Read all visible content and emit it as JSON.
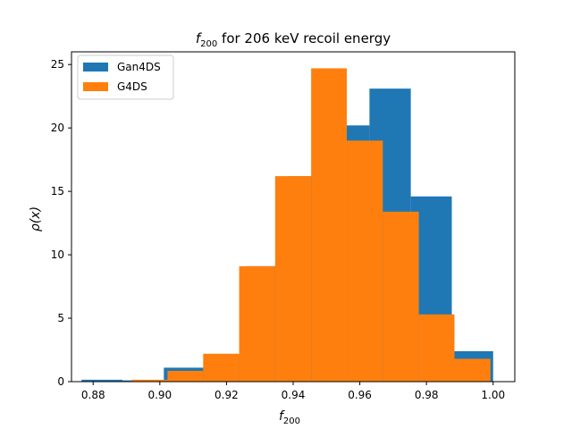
{
  "chart_data": {
    "type": "histogram",
    "title_main": "f",
    "title_sub": "200",
    "title_rest": " for 206 keV recoil energy",
    "xlabel_main": "f",
    "xlabel_sub": "200",
    "ylabel": "ρ(x)",
    "xlim": [
      0.8735,
      1.0065
    ],
    "ylim": [
      0,
      26
    ],
    "xticks": [
      "0.88",
      "0.90",
      "0.92",
      "0.94",
      "0.96",
      "0.98",
      "1.00"
    ],
    "xtick_values": [
      0.88,
      0.9,
      0.92,
      0.94,
      0.96,
      0.98,
      1.0
    ],
    "yticks": [
      "0",
      "5",
      "10",
      "15",
      "20",
      "25"
    ],
    "ytick_values": [
      0,
      5,
      10,
      15,
      20,
      25
    ],
    "legend_position": "top-left",
    "series": [
      {
        "name": "Gan4DS",
        "color": "#1f77b4",
        "bin_edges": [
          0.8765,
          0.8888,
          0.9012,
          0.9135,
          0.9259,
          0.9382,
          0.9506,
          0.9629,
          0.9753,
          0.9876,
          1.0
        ],
        "values": [
          0.15,
          0.1,
          1.1,
          2.0,
          9.1,
          16.2,
          20.2,
          23.1,
          14.6,
          2.4
        ]
      },
      {
        "name": "G4DS",
        "color": "#ff7f0e",
        "bin_edges": [
          0.8915,
          0.9023,
          0.913,
          0.9238,
          0.9346,
          0.9454,
          0.9561,
          0.9669,
          0.9777,
          0.9884,
          0.9992
        ],
        "values": [
          0.15,
          0.85,
          2.2,
          9.1,
          16.2,
          24.7,
          19.0,
          13.4,
          5.3,
          1.8
        ]
      }
    ]
  }
}
